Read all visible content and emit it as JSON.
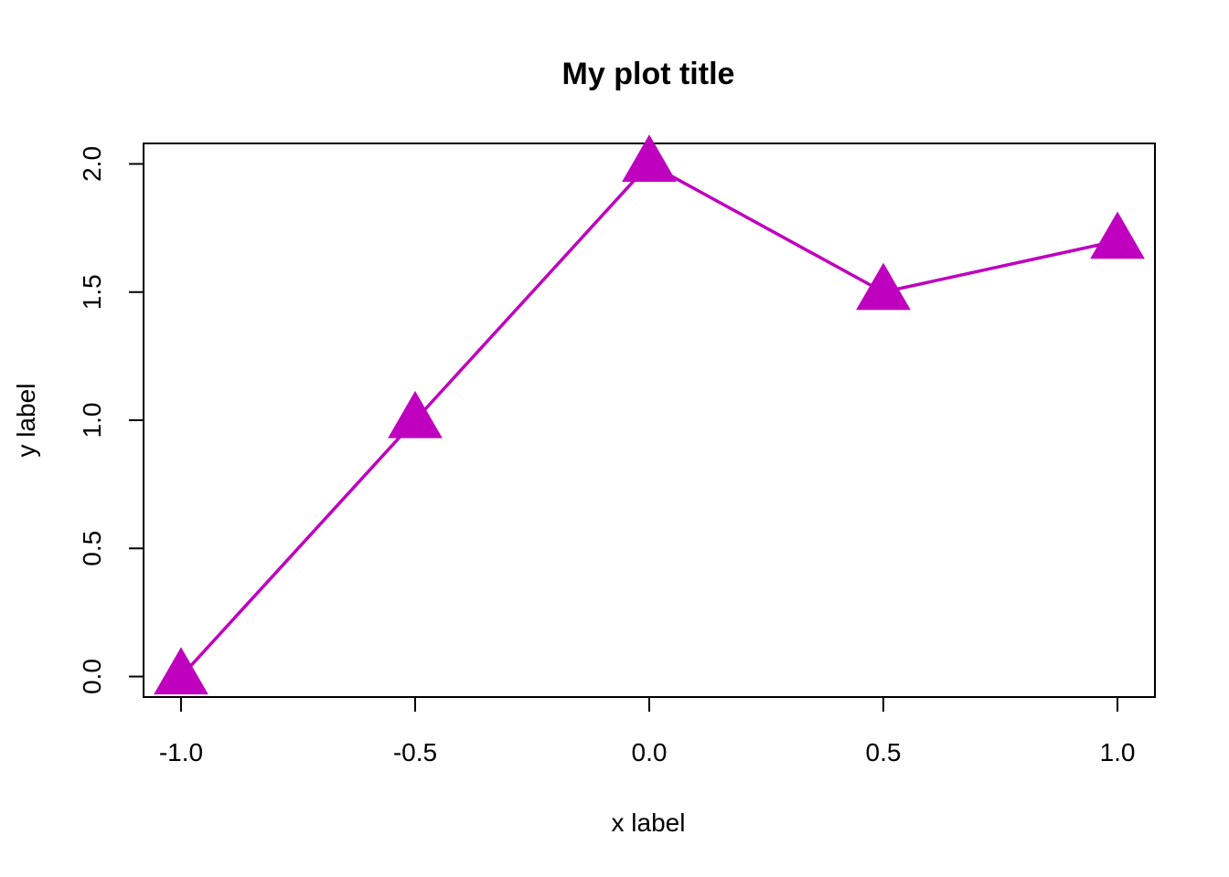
{
  "chart_data": {
    "type": "line",
    "title": "My plot title",
    "xlabel": "x label",
    "ylabel": "y label",
    "x": [
      -1.0,
      -0.5,
      0.0,
      0.5,
      1.0
    ],
    "series": [
      {
        "values": [
          0.0,
          1.0,
          2.0,
          1.5,
          1.7
        ],
        "color": "#BF00BF",
        "marker": "triangle"
      }
    ],
    "xlim": [
      -1.08,
      1.08
    ],
    "ylim": [
      -0.08,
      2.08
    ],
    "xticks": [
      -1.0,
      -0.5,
      0.0,
      0.5,
      1.0
    ],
    "xtick_labels": [
      "-1.0",
      "-0.5",
      "0.0",
      "0.5",
      "1.0"
    ],
    "yticks": [
      0.0,
      0.5,
      1.0,
      1.5,
      2.0
    ],
    "ytick_labels": [
      "0.0",
      "0.5",
      "1.0",
      "1.5",
      "2.0"
    ],
    "grid": false,
    "legend": "none"
  }
}
